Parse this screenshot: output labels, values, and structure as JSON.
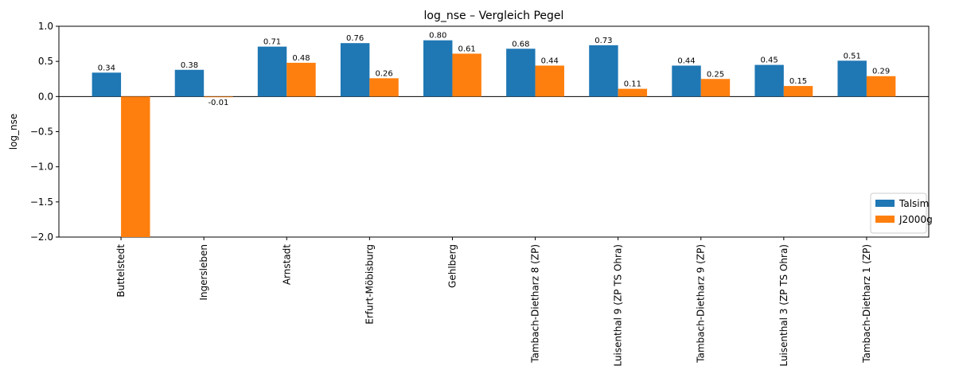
{
  "chart_data": {
    "type": "bar",
    "title": "log_nse – Vergleich  Pegel",
    "xlabel": "",
    "ylabel": "log_nse",
    "ylim": [
      -2.0,
      1.0
    ],
    "yticks": [
      1.0,
      0.5,
      0.0,
      -0.5,
      -1.0,
      -1.5,
      -2.0
    ],
    "ytick_labels": [
      "1.0",
      "0.5",
      "0.0",
      "−0.5",
      "−1.0",
      "−1.5",
      "−2.0"
    ],
    "categories": [
      "Buttelstedt",
      "Ingersleben",
      "Arnstadt",
      "Erfurt-Möbisburg",
      "Gehlberg",
      "Tambach-Dietharz 8 (ZP)",
      "Luisenthal 9 (ZP TS Ohra)",
      "Tambach-Dietharz 9 (ZP)",
      "Luisenthal 3 (ZP TS Ohra)",
      "Tambach-Dietharz 1 (ZP)"
    ],
    "series": [
      {
        "name": "Talsim",
        "color": "#1f77b4",
        "values": [
          0.34,
          0.38,
          0.71,
          0.76,
          0.8,
          0.68,
          0.73,
          0.44,
          0.45,
          0.51
        ],
        "labels": [
          "0.34",
          "0.38",
          "0.71",
          "0.76",
          "0.80",
          "0.68",
          "0.73",
          "0.44",
          "0.45",
          "0.51"
        ]
      },
      {
        "name": "J2000g",
        "color": "#ff7f0e",
        "values": [
          -2.0,
          -0.01,
          0.48,
          0.26,
          0.61,
          0.44,
          0.11,
          0.25,
          0.15,
          0.29
        ],
        "labels": [
          "",
          "-0.01",
          "0.48",
          "0.26",
          "0.61",
          "0.44",
          "0.11",
          "0.25",
          "0.15",
          "0.29"
        ]
      }
    ],
    "grid": false,
    "legend_position": "lower-right"
  }
}
